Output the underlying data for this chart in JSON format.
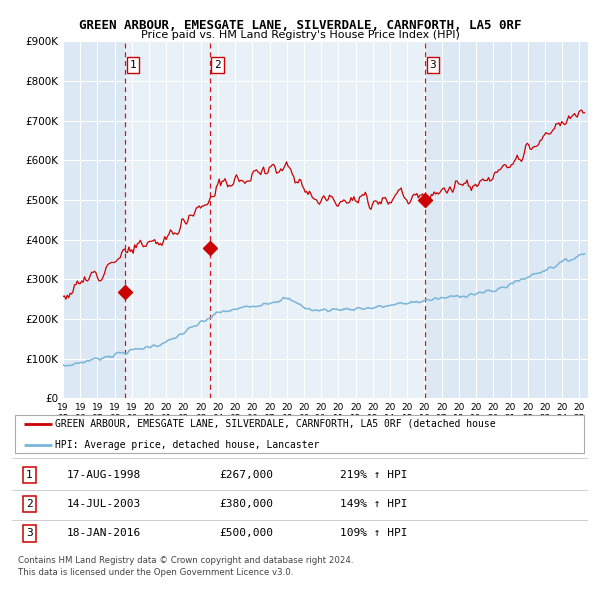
{
  "title": "GREEN ARBOUR, EMESGATE LANE, SILVERDALE, CARNFORTH, LA5 0RF",
  "subtitle": "Price paid vs. HM Land Registry's House Price Index (HPI)",
  "background_color": "#ffffff",
  "plot_bg_color": "#dce9f5",
  "grid_color": "#ffffff",
  "transactions": [
    {
      "num": 1,
      "date_label": "17-AUG-1998",
      "year": 1998.62,
      "price": 267000,
      "pct": "219%",
      "direction": "↑"
    },
    {
      "num": 2,
      "date_label": "14-JUL-2003",
      "year": 2003.53,
      "price": 380000,
      "pct": "149%",
      "direction": "↑"
    },
    {
      "num": 3,
      "date_label": "18-JAN-2016",
      "year": 2016.05,
      "price": 500000,
      "pct": "109%",
      "direction": "↑"
    }
  ],
  "hpi_line_color": "#7ab4d8",
  "price_line_color": "#cc0000",
  "marker_color": "#cc0000",
  "dashed_line_color": "#cc0000",
  "shade_color": "#c8ddf0",
  "ylim": [
    0,
    900000
  ],
  "yticks": [
    0,
    100000,
    200000,
    300000,
    400000,
    500000,
    600000,
    700000,
    800000,
    900000
  ],
  "ytick_labels": [
    "£0",
    "£100K",
    "£200K",
    "£300K",
    "£400K",
    "£500K",
    "£600K",
    "£700K",
    "£800K",
    "£900K"
  ],
  "xmin": 1995.0,
  "xmax": 2025.5,
  "legend_label_red": "GREEN ARBOUR, EMESGATE LANE, SILVERDALE, CARNFORTH, LA5 0RF (detached house",
  "legend_label_blue": "HPI: Average price, detached house, Lancaster",
  "footer_line1": "Contains HM Land Registry data © Crown copyright and database right 2024.",
  "footer_line2": "This data is licensed under the Open Government Licence v3.0.",
  "row_data": [
    [
      1,
      "17-AUG-1998",
      "£267,000",
      "219% ↑ HPI"
    ],
    [
      2,
      "14-JUL-2003",
      "£380,000",
      "149% ↑ HPI"
    ],
    [
      3,
      "18-JAN-2016",
      "£500,000",
      "109% ↑ HPI"
    ]
  ]
}
